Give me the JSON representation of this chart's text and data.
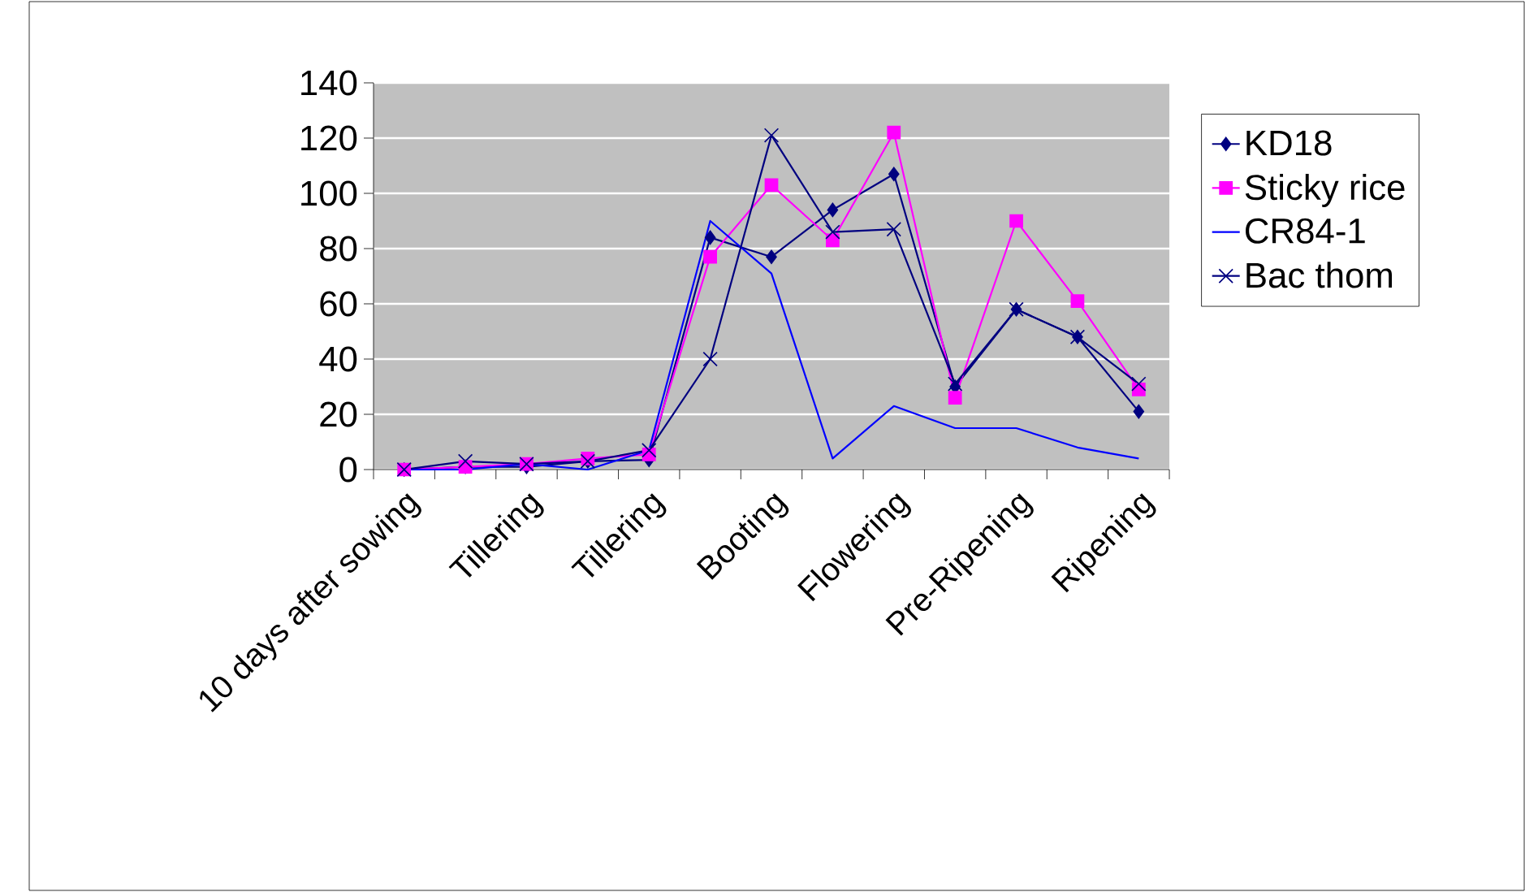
{
  "chart_data": {
    "type": "line",
    "categories": [
      "10 days after sowing",
      null,
      "Tillering",
      null,
      "Tillering",
      null,
      "Booting",
      null,
      "Flowering",
      null,
      "Pre-Ripening",
      null,
      "Ripening"
    ],
    "series": [
      {
        "name": "KD18",
        "color": "#000080",
        "marker": "diamond",
        "values": [
          0,
          1,
          1,
          3,
          3.5,
          84,
          77,
          94,
          107,
          30,
          58,
          48,
          21
        ]
      },
      {
        "name": "Sticky rice",
        "color": "#ff00ff",
        "marker": "square",
        "values": [
          0,
          1,
          2,
          4,
          5.5,
          77,
          103,
          83,
          122,
          26,
          90,
          61,
          29
        ]
      },
      {
        "name": "CR84-1",
        "color": "#0000ff",
        "marker": "none",
        "values": [
          0,
          0,
          2,
          0,
          7,
          90,
          71,
          4,
          23,
          15,
          15,
          8,
          4
        ]
      },
      {
        "name": "Bac thom",
        "color": "#000080",
        "marker": "cross",
        "values": [
          0,
          3,
          2,
          3,
          7,
          40,
          121,
          86,
          87,
          31,
          58,
          48,
          31
        ]
      }
    ],
    "ylim": [
      0,
      140
    ],
    "yticks": [
      0,
      20,
      40,
      60,
      80,
      100,
      120,
      140
    ],
    "grid": "y",
    "legend": "right"
  }
}
